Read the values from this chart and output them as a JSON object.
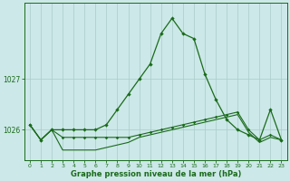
{
  "hours": [
    0,
    1,
    2,
    3,
    4,
    5,
    6,
    7,
    8,
    9,
    10,
    11,
    12,
    13,
    14,
    15,
    16,
    17,
    18,
    19,
    20,
    21,
    22,
    23
  ],
  "line1": [
    1026.1,
    1025.8,
    1026.0,
    1026.0,
    1026.0,
    1026.0,
    1026.0,
    1026.1,
    1026.4,
    1026.7,
    1027.0,
    1027.3,
    1027.9,
    1028.2,
    1027.9,
    1027.8,
    1027.1,
    1026.6,
    1026.2,
    1026.0,
    1025.9,
    1025.8,
    1026.4,
    1025.8
  ],
  "line2": [
    1026.1,
    1025.8,
    1026.0,
    1025.85,
    1025.85,
    1025.85,
    1025.85,
    1025.85,
    1025.85,
    1025.85,
    1025.9,
    1025.95,
    1026.0,
    1026.05,
    1026.1,
    1026.15,
    1026.2,
    1026.25,
    1026.3,
    1026.35,
    1026.0,
    1025.8,
    1025.9,
    1025.8
  ],
  "line3": [
    1026.1,
    1025.8,
    1026.0,
    1025.6,
    1025.6,
    1025.6,
    1025.6,
    1025.65,
    1025.7,
    1025.75,
    1025.85,
    1025.9,
    1025.95,
    1026.0,
    1026.05,
    1026.1,
    1026.15,
    1026.2,
    1026.25,
    1026.3,
    1025.95,
    1025.75,
    1025.85,
    1025.8
  ],
  "bg_color": "#cce8e8",
  "grid_color": "#aacaca",
  "line_color": "#1a6b1a",
  "xlabel": "Graphe pression niveau de la mer (hPa)",
  "yticks": [
    1026,
    1027
  ],
  "ylim": [
    1025.4,
    1028.5
  ],
  "xlim": [
    -0.5,
    23.5
  ]
}
